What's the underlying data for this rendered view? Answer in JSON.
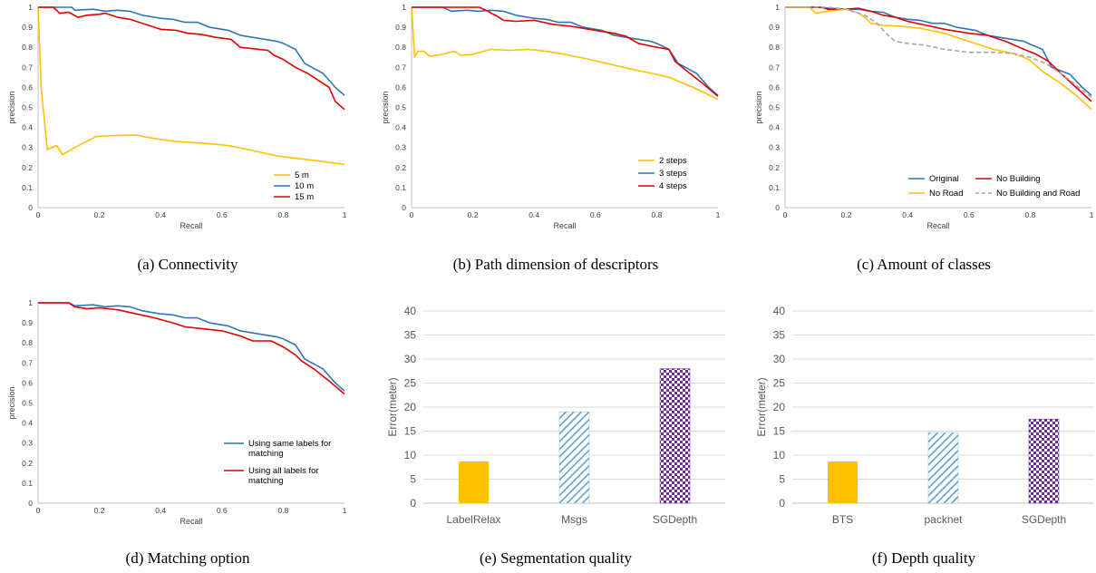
{
  "colors": {
    "yellow": "#FFC000",
    "blue": "#2E75B6",
    "red": "#E00000",
    "gray": "#A6A6A6",
    "purple": "#6A2C91",
    "hatchBlue": "#5B9BC5"
  },
  "chart_data": [
    {
      "id": "a",
      "type": "line",
      "caption": "(a) Connectivity",
      "xlabel": "Recall",
      "ylabel": "precision",
      "xlim": [
        0,
        1
      ],
      "ylim": [
        0,
        1
      ],
      "xticks": [
        "0",
        "0.2",
        "0.4",
        "0.6",
        "0.8",
        "1"
      ],
      "yticks": [
        "0",
        "0.1",
        "0.2",
        "0.3",
        "0.4",
        "0.5",
        "0.6",
        "0.7",
        "0.8",
        "0.9",
        "1"
      ],
      "legend_position": "bottom-right",
      "series": [
        {
          "name": "5 m",
          "color": "yellow",
          "dash": false,
          "x": [
            0,
            0.01,
            0.03,
            0.06,
            0.08,
            0.12,
            0.19,
            0.26,
            0.32,
            0.38,
            0.45,
            0.55,
            0.62,
            0.7,
            0.78,
            0.85,
            0.92,
            1
          ],
          "y": [
            1,
            0.6,
            0.29,
            0.31,
            0.265,
            0.3,
            0.355,
            0.36,
            0.362,
            0.345,
            0.33,
            0.32,
            0.31,
            0.285,
            0.258,
            0.245,
            0.232,
            0.215
          ]
        },
        {
          "name": "10 m",
          "color": "blue",
          "dash": false,
          "x": [
            0,
            0.05,
            0.11,
            0.12,
            0.18,
            0.22,
            0.26,
            0.3,
            0.34,
            0.4,
            0.44,
            0.48,
            0.52,
            0.56,
            0.62,
            0.66,
            0.72,
            0.78,
            0.8,
            0.84,
            0.87,
            0.93,
            0.97,
            1
          ],
          "y": [
            1,
            1,
            1,
            0.985,
            0.99,
            0.98,
            0.985,
            0.98,
            0.96,
            0.945,
            0.94,
            0.925,
            0.925,
            0.9,
            0.885,
            0.86,
            0.845,
            0.83,
            0.82,
            0.79,
            0.72,
            0.67,
            0.6,
            0.56
          ]
        },
        {
          "name": "15 m",
          "color": "red",
          "dash": false,
          "x": [
            0,
            0.05,
            0.07,
            0.1,
            0.13,
            0.16,
            0.2,
            0.22,
            0.26,
            0.3,
            0.34,
            0.4,
            0.45,
            0.49,
            0.53,
            0.58,
            0.63,
            0.66,
            0.72,
            0.75,
            0.77,
            0.8,
            0.84,
            0.88,
            0.92,
            0.95,
            0.97,
            1
          ],
          "y": [
            1,
            1,
            0.97,
            0.975,
            0.95,
            0.96,
            0.965,
            0.97,
            0.95,
            0.94,
            0.92,
            0.89,
            0.885,
            0.87,
            0.865,
            0.85,
            0.84,
            0.8,
            0.79,
            0.785,
            0.76,
            0.74,
            0.7,
            0.67,
            0.63,
            0.6,
            0.53,
            0.49
          ]
        }
      ]
    },
    {
      "id": "b",
      "type": "line",
      "caption": "(b) Path dimension of descriptors",
      "xlabel": "Recall",
      "ylabel": "precision",
      "xlim": [
        0,
        1
      ],
      "ylim": [
        0,
        1
      ],
      "xticks": [
        "0",
        "0.2",
        "0.4",
        "0.6",
        "0.8",
        "1"
      ],
      "yticks": [
        "0",
        "0.1",
        "0.2",
        "0.3",
        "0.4",
        "0.5",
        "0.6",
        "0.7",
        "0.8",
        "0.9",
        "1"
      ],
      "legend_position": "bottom-right",
      "series": [
        {
          "name": "2 steps",
          "color": "yellow",
          "dash": false,
          "x": [
            0,
            0.01,
            0.02,
            0.04,
            0.06,
            0.1,
            0.14,
            0.16,
            0.2,
            0.26,
            0.32,
            0.38,
            0.44,
            0.5,
            0.58,
            0.65,
            0.72,
            0.8,
            0.84,
            0.92,
            1
          ],
          "y": [
            1,
            0.75,
            0.78,
            0.78,
            0.755,
            0.765,
            0.78,
            0.76,
            0.765,
            0.79,
            0.785,
            0.79,
            0.78,
            0.765,
            0.74,
            0.715,
            0.69,
            0.665,
            0.65,
            0.6,
            0.54
          ]
        },
        {
          "name": "3 steps",
          "color": "blue",
          "dash": false,
          "x": [
            0,
            0.06,
            0.1,
            0.13,
            0.18,
            0.22,
            0.26,
            0.3,
            0.34,
            0.4,
            0.44,
            0.48,
            0.52,
            0.56,
            0.62,
            0.66,
            0.72,
            0.78,
            0.8,
            0.84,
            0.87,
            0.93,
            0.97,
            1
          ],
          "y": [
            1,
            1,
            1,
            0.98,
            0.985,
            0.98,
            0.985,
            0.98,
            0.96,
            0.945,
            0.94,
            0.925,
            0.925,
            0.9,
            0.885,
            0.86,
            0.845,
            0.83,
            0.82,
            0.79,
            0.72,
            0.67,
            0.6,
            0.56
          ]
        },
        {
          "name": "4 steps",
          "color": "red",
          "dash": false,
          "x": [
            0,
            0.1,
            0.18,
            0.22,
            0.25,
            0.26,
            0.28,
            0.3,
            0.34,
            0.4,
            0.46,
            0.52,
            0.6,
            0.66,
            0.7,
            0.74,
            0.8,
            0.84,
            0.86,
            0.9,
            0.95,
            1
          ],
          "y": [
            1,
            1,
            1,
            1,
            0.98,
            0.97,
            0.955,
            0.935,
            0.93,
            0.935,
            0.915,
            0.905,
            0.885,
            0.87,
            0.855,
            0.82,
            0.8,
            0.79,
            0.73,
            0.68,
            0.62,
            0.555
          ]
        }
      ]
    },
    {
      "id": "c",
      "type": "line",
      "caption": "(c) Amount of classes",
      "xlabel": "Recall",
      "ylabel": "precision",
      "xlim": [
        0,
        1
      ],
      "ylim": [
        0,
        1
      ],
      "xticks": [
        "0",
        "0.2",
        "0.4",
        "0.6",
        "0.8",
        "1"
      ],
      "yticks": [
        "0",
        "0.1",
        "0.2",
        "0.3",
        "0.4",
        "0.5",
        "0.6",
        "0.7",
        "0.8",
        "0.9",
        "1"
      ],
      "legend_position": "bottom-right",
      "series": [
        {
          "name": "Original",
          "color": "blue",
          "dash": false,
          "x": [
            0,
            0.1,
            0.2,
            0.24,
            0.28,
            0.32,
            0.36,
            0.4,
            0.44,
            0.48,
            0.52,
            0.56,
            0.62,
            0.66,
            0.72,
            0.78,
            0.8,
            0.84,
            0.87,
            0.93,
            0.97,
            1
          ],
          "y": [
            1,
            1,
            0.99,
            0.99,
            0.98,
            0.975,
            0.95,
            0.94,
            0.935,
            0.92,
            0.92,
            0.9,
            0.885,
            0.86,
            0.845,
            0.83,
            0.815,
            0.79,
            0.7,
            0.665,
            0.6,
            0.56
          ]
        },
        {
          "name": "No Building",
          "color": "red",
          "dash": false,
          "x": [
            0,
            0.12,
            0.14,
            0.2,
            0.24,
            0.28,
            0.32,
            0.36,
            0.4,
            0.46,
            0.52,
            0.6,
            0.66,
            0.72,
            0.78,
            0.82,
            0.86,
            0.9,
            0.95,
            1
          ],
          "y": [
            1,
            1,
            0.99,
            0.99,
            0.995,
            0.98,
            0.96,
            0.95,
            0.93,
            0.91,
            0.89,
            0.87,
            0.86,
            0.83,
            0.79,
            0.765,
            0.73,
            0.67,
            0.6,
            0.53
          ]
        },
        {
          "name": "No Road",
          "color": "yellow",
          "dash": false,
          "x": [
            0,
            0.08,
            0.1,
            0.14,
            0.2,
            0.24,
            0.26,
            0.28,
            0.32,
            0.38,
            0.44,
            0.52,
            0.6,
            0.68,
            0.74,
            0.78,
            0.8,
            0.84,
            0.9,
            0.95,
            1
          ],
          "y": [
            1,
            1,
            0.97,
            0.98,
            0.99,
            0.97,
            0.95,
            0.92,
            0.91,
            0.905,
            0.895,
            0.87,
            0.83,
            0.79,
            0.77,
            0.75,
            0.735,
            0.68,
            0.62,
            0.56,
            0.49
          ]
        },
        {
          "name": "No Building and Road",
          "color": "gray",
          "dash": true,
          "x": [
            0,
            0.14,
            0.2,
            0.26,
            0.3,
            0.33,
            0.36,
            0.4,
            0.46,
            0.52,
            0.6,
            0.68,
            0.74,
            0.8,
            0.85,
            0.9,
            0.95,
            1
          ],
          "y": [
            1,
            1,
            0.99,
            0.96,
            0.92,
            0.87,
            0.83,
            0.82,
            0.81,
            0.79,
            0.775,
            0.775,
            0.77,
            0.75,
            0.72,
            0.67,
            0.61,
            0.55
          ]
        }
      ]
    },
    {
      "id": "d",
      "type": "line",
      "caption": "(d) Matching option",
      "xlabel": "Recall",
      "ylabel": "precision",
      "xlim": [
        0,
        1
      ],
      "ylim": [
        0,
        1
      ],
      "xticks": [
        "0",
        "0.2",
        "0.4",
        "0.6",
        "0.8",
        "1"
      ],
      "yticks": [
        "0",
        "0.1",
        "0.2",
        "0.3",
        "0.4",
        "0.5",
        "0.6",
        "0.7",
        "0.8",
        "0.9",
        "1"
      ],
      "legend_position": "bottom-right",
      "series": [
        {
          "name": "Using same labels for matching",
          "color": "blue",
          "dash": false,
          "x": [
            0,
            0.1,
            0.12,
            0.18,
            0.22,
            0.26,
            0.3,
            0.34,
            0.4,
            0.44,
            0.48,
            0.52,
            0.56,
            0.62,
            0.66,
            0.72,
            0.78,
            0.8,
            0.84,
            0.87,
            0.93,
            0.97,
            1
          ],
          "y": [
            1,
            1,
            0.985,
            0.99,
            0.98,
            0.985,
            0.98,
            0.96,
            0.945,
            0.94,
            0.925,
            0.925,
            0.9,
            0.885,
            0.86,
            0.845,
            0.83,
            0.82,
            0.79,
            0.72,
            0.67,
            0.6,
            0.56
          ]
        },
        {
          "name": "Using all labels for matching",
          "color": "red",
          "dash": false,
          "x": [
            0,
            0.1,
            0.12,
            0.16,
            0.2,
            0.26,
            0.32,
            0.38,
            0.44,
            0.48,
            0.54,
            0.6,
            0.66,
            0.7,
            0.76,
            0.8,
            0.84,
            0.86,
            0.9,
            0.95,
            1
          ],
          "y": [
            1,
            1,
            0.98,
            0.97,
            0.975,
            0.965,
            0.945,
            0.925,
            0.9,
            0.88,
            0.87,
            0.86,
            0.835,
            0.81,
            0.81,
            0.78,
            0.74,
            0.71,
            0.67,
            0.61,
            0.545
          ]
        }
      ]
    },
    {
      "id": "e",
      "type": "bar",
      "caption": "(e) Segmentation quality",
      "ylabel": "Error(meter)",
      "ylim": [
        0,
        40
      ],
      "yticks": [
        "0",
        "5",
        "10",
        "15",
        "20",
        "25",
        "30",
        "35",
        "40"
      ],
      "categories": [
        "LabelRelax",
        "Msgs",
        "SGDepth"
      ],
      "values": [
        8.7,
        19,
        28
      ],
      "patterns": [
        "solid-yellow",
        "hatch-blue",
        "checker-purple"
      ]
    },
    {
      "id": "f",
      "type": "bar",
      "caption": "(f) Depth quality",
      "ylabel": "Error(meter)",
      "ylim": [
        0,
        40
      ],
      "yticks": [
        "0",
        "5",
        "10",
        "15",
        "20",
        "25",
        "30",
        "35",
        "40"
      ],
      "categories": [
        "BTS",
        "packnet",
        "SGDepth"
      ],
      "values": [
        8.7,
        14.7,
        17.5
      ],
      "patterns": [
        "solid-yellow",
        "hatch-blue",
        "checker-purple"
      ]
    }
  ]
}
